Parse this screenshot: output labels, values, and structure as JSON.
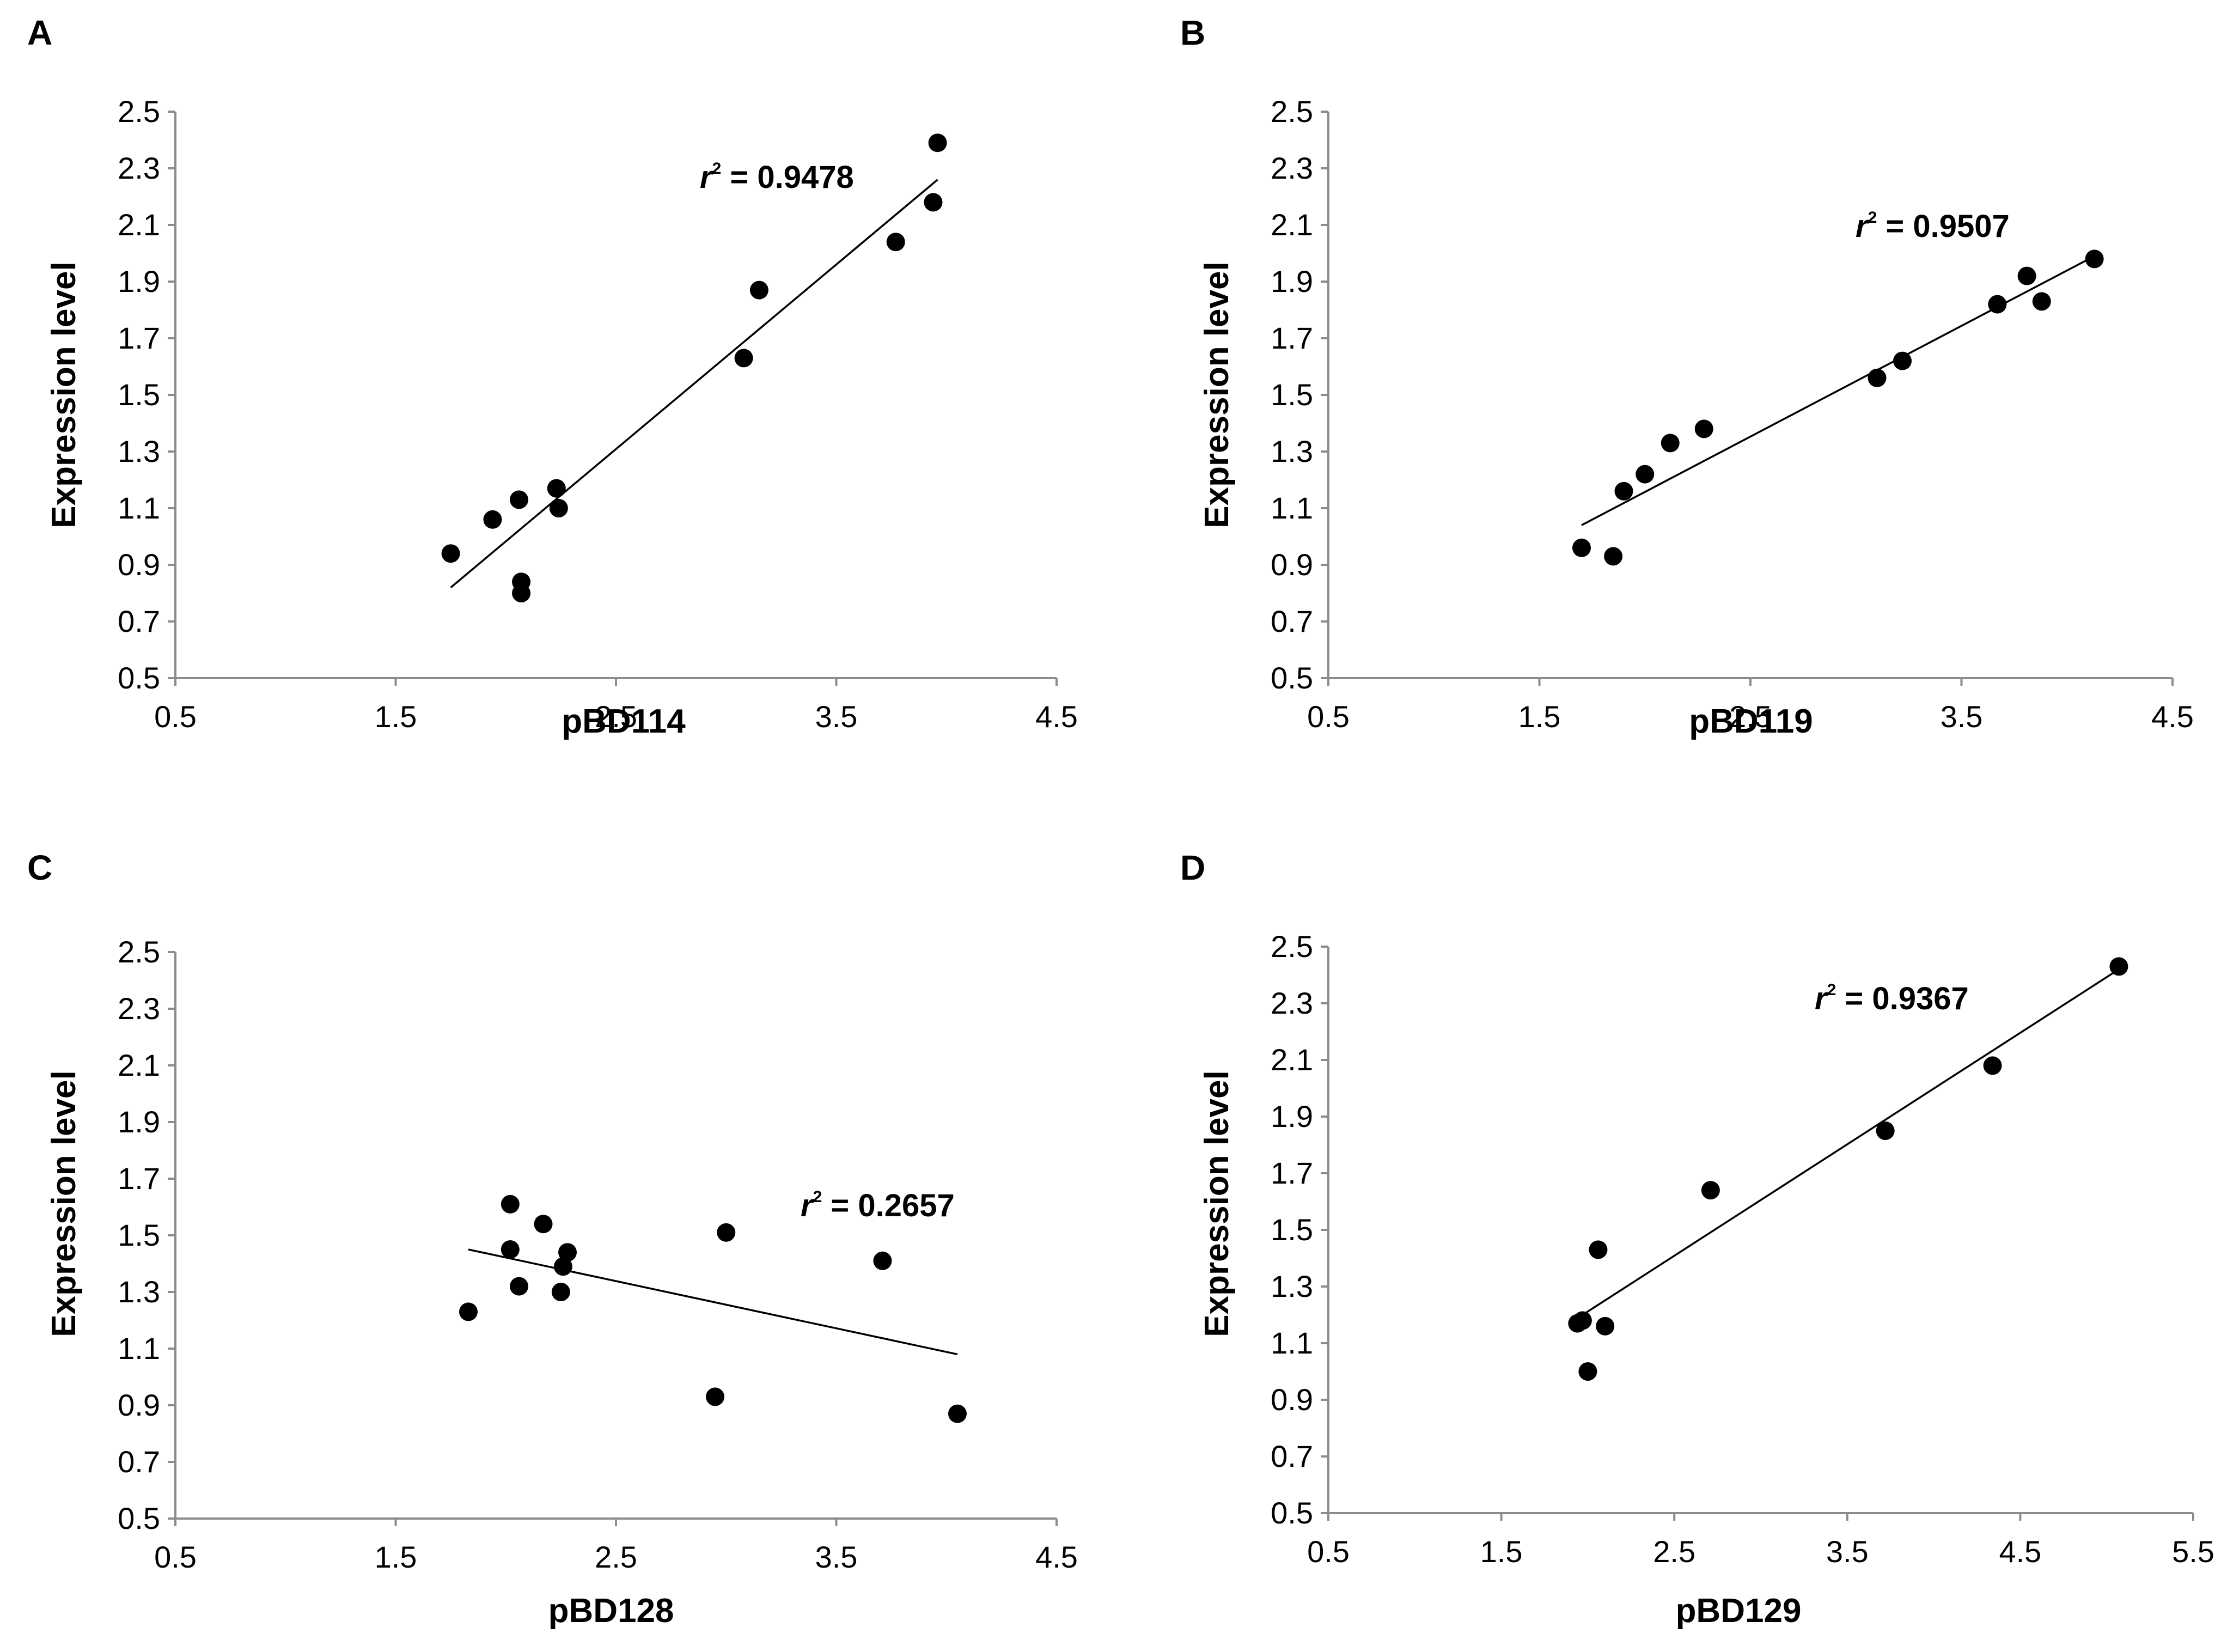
{
  "chart_data": [
    {
      "panel": "A",
      "type": "scatter",
      "title": "",
      "xlabel": "pBD114",
      "ylabel": "Expression level",
      "xlim": [
        0.5,
        4.5
      ],
      "ylim": [
        0.5,
        2.5
      ],
      "xticks": [
        "0.5",
        "1.5",
        "2.5",
        "3.5",
        "4.5"
      ],
      "yticks": [
        "0.5",
        "0.7",
        "0.9",
        "1.1",
        "1.3",
        "1.5",
        "1.7",
        "1.9",
        "2.1",
        "2.3",
        "2.5"
      ],
      "points": [
        {
          "x": 1.75,
          "y": 0.94
        },
        {
          "x": 1.94,
          "y": 1.06
        },
        {
          "x": 2.06,
          "y": 1.13
        },
        {
          "x": 2.07,
          "y": 0.84
        },
        {
          "x": 2.07,
          "y": 0.8
        },
        {
          "x": 2.23,
          "y": 1.17
        },
        {
          "x": 2.24,
          "y": 1.1
        },
        {
          "x": 3.08,
          "y": 1.63
        },
        {
          "x": 3.15,
          "y": 1.87
        },
        {
          "x": 3.77,
          "y": 2.04
        },
        {
          "x": 3.94,
          "y": 2.18
        },
        {
          "x": 3.96,
          "y": 2.39
        }
      ],
      "trendline": {
        "x1": 1.75,
        "y1": 0.82,
        "x2": 3.96,
        "y2": 2.26
      },
      "r2_symbol": "r",
      "r2_exponent": "2",
      "r2_value": " = 0.9478"
    },
    {
      "panel": "B",
      "type": "scatter",
      "title": "",
      "xlabel": "pBD119",
      "ylabel": "Expression level",
      "xlim": [
        0.5,
        4.5
      ],
      "ylim": [
        0.5,
        2.5
      ],
      "xticks": [
        "0.5",
        "1.5",
        "2.5",
        "3.5",
        "4.5"
      ],
      "yticks": [
        "0.5",
        "0.7",
        "0.9",
        "1.1",
        "1.3",
        "1.5",
        "1.7",
        "1.9",
        "2.1",
        "2.3",
        "2.5"
      ],
      "points": [
        {
          "x": 1.7,
          "y": 0.96
        },
        {
          "x": 1.85,
          "y": 0.93
        },
        {
          "x": 1.9,
          "y": 1.16
        },
        {
          "x": 2.0,
          "y": 1.22
        },
        {
          "x": 2.12,
          "y": 1.33
        },
        {
          "x": 2.28,
          "y": 1.38
        },
        {
          "x": 3.1,
          "y": 1.56
        },
        {
          "x": 3.22,
          "y": 1.62
        },
        {
          "x": 3.67,
          "y": 1.82
        },
        {
          "x": 3.81,
          "y": 1.92
        },
        {
          "x": 3.88,
          "y": 1.83
        },
        {
          "x": 4.13,
          "y": 1.98
        }
      ],
      "trendline": {
        "x1": 1.7,
        "y1": 1.04,
        "x2": 4.13,
        "y2": 1.99
      },
      "r2_symbol": "r",
      "r2_exponent": "2",
      "r2_value": " = 0.9507"
    },
    {
      "panel": "C",
      "type": "scatter",
      "title": "",
      "xlabel": "pBD128",
      "ylabel": "Expression level",
      "xlim": [
        0.5,
        4.5
      ],
      "ylim": [
        0.5,
        2.5
      ],
      "xticks": [
        "0.5",
        "1.5",
        "2.5",
        "3.5",
        "4.5"
      ],
      "yticks": [
        "0.5",
        "0.7",
        "0.9",
        "1.1",
        "1.3",
        "1.5",
        "1.7",
        "1.9",
        "2.1",
        "2.3",
        "2.5"
      ],
      "points": [
        {
          "x": 1.83,
          "y": 1.23
        },
        {
          "x": 2.02,
          "y": 1.61
        },
        {
          "x": 2.02,
          "y": 1.45
        },
        {
          "x": 2.06,
          "y": 1.32
        },
        {
          "x": 2.17,
          "y": 1.54
        },
        {
          "x": 2.25,
          "y": 1.3
        },
        {
          "x": 2.26,
          "y": 1.39
        },
        {
          "x": 2.28,
          "y": 1.44
        },
        {
          "x": 2.95,
          "y": 0.93
        },
        {
          "x": 3.0,
          "y": 1.51
        },
        {
          "x": 3.71,
          "y": 1.41
        },
        {
          "x": 4.05,
          "y": 0.87
        }
      ],
      "trendline": {
        "x1": 1.83,
        "y1": 1.45,
        "x2": 4.05,
        "y2": 1.08
      },
      "r2_symbol": "r",
      "r2_exponent": "2",
      "r2_value": " = 0.2657"
    },
    {
      "panel": "D",
      "type": "scatter",
      "title": "",
      "xlabel": "pBD129",
      "ylabel": "Expression level",
      "xlim": [
        0.5,
        5.5
      ],
      "ylim": [
        0.5,
        2.5
      ],
      "xticks": [
        "0.5",
        "1.5",
        "2.5",
        "3.5",
        "4.5",
        "5.5"
      ],
      "yticks": [
        "0.5",
        "0.7",
        "0.9",
        "1.1",
        "1.3",
        "1.5",
        "1.7",
        "1.9",
        "2.1",
        "2.3",
        "2.5"
      ],
      "points": [
        {
          "x": 1.94,
          "y": 1.17
        },
        {
          "x": 1.97,
          "y": 1.18
        },
        {
          "x": 2.0,
          "y": 1.0
        },
        {
          "x": 2.06,
          "y": 1.43
        },
        {
          "x": 2.1,
          "y": 1.16
        },
        {
          "x": 2.71,
          "y": 1.64
        },
        {
          "x": 3.72,
          "y": 1.85
        },
        {
          "x": 4.34,
          "y": 2.08
        },
        {
          "x": 5.07,
          "y": 2.43
        }
      ],
      "trendline": {
        "x1": 1.97,
        "y1": 1.2,
        "x2": 5.07,
        "y2": 2.42
      },
      "r2_symbol": "r",
      "r2_exponent": "2",
      "r2_value": " = 0.9367"
    }
  ]
}
